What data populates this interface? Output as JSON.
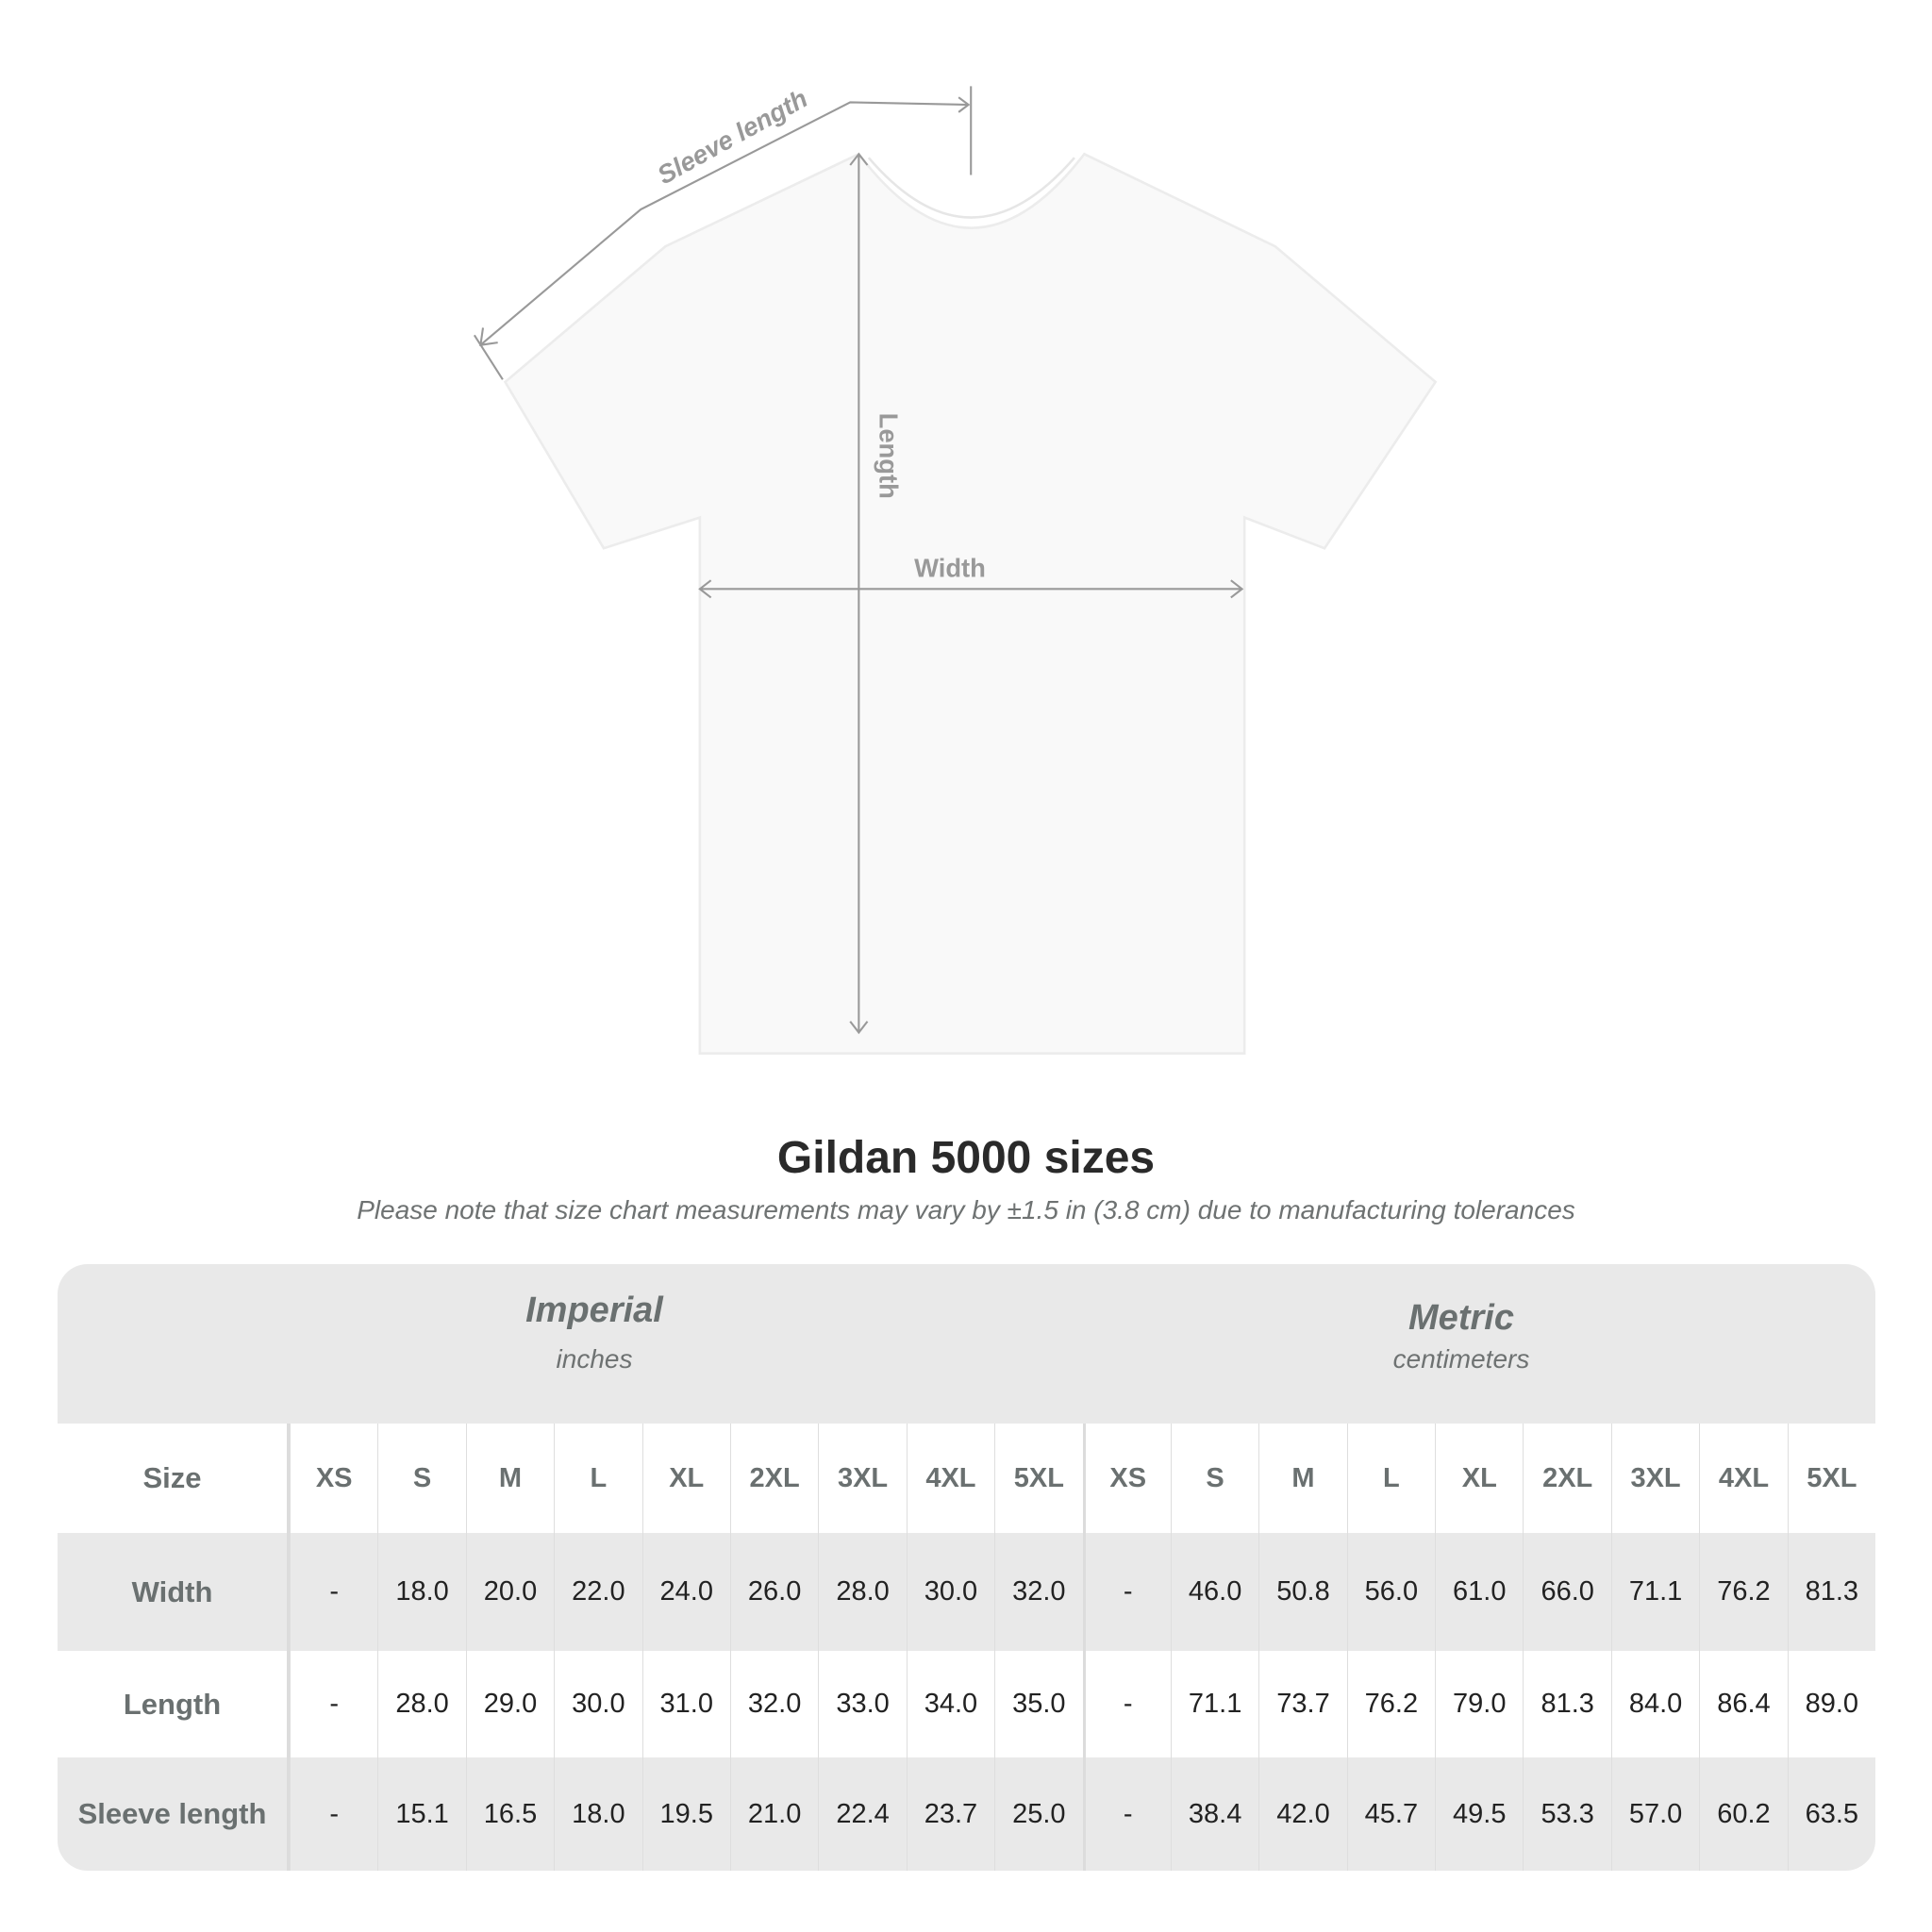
{
  "diagram": {
    "sleeve_label": "Sleeve length",
    "length_label": "Length",
    "width_label": "Width"
  },
  "title": "Gildan 5000 sizes",
  "note": "Please note that size chart measurements may vary by ±1.5 in (3.8 cm) due to manufacturing tolerances",
  "table": {
    "imperial": {
      "name": "Imperial",
      "unit": "inches"
    },
    "metric": {
      "name": "Metric",
      "unit": "centimeters"
    },
    "size_label": "Size",
    "sizes": [
      "XS",
      "S",
      "M",
      "L",
      "XL",
      "2XL",
      "3XL",
      "4XL",
      "5XL"
    ],
    "rows": [
      {
        "label": "Width",
        "imperial": [
          "-",
          "18.0",
          "20.0",
          "22.0",
          "24.0",
          "26.0",
          "28.0",
          "30.0",
          "32.0"
        ],
        "metric": [
          "-",
          "46.0",
          "50.8",
          "56.0",
          "61.0",
          "66.0",
          "71.1",
          "76.2",
          "81.3"
        ]
      },
      {
        "label": "Length",
        "imperial": [
          "-",
          "28.0",
          "29.0",
          "30.0",
          "31.0",
          "32.0",
          "33.0",
          "34.0",
          "35.0"
        ],
        "metric": [
          "-",
          "71.1",
          "73.7",
          "76.2",
          "79.0",
          "81.3",
          "84.0",
          "86.4",
          "89.0"
        ]
      },
      {
        "label": "Sleeve length",
        "imperial": [
          "-",
          "15.1",
          "16.5",
          "18.0",
          "19.5",
          "21.0",
          "22.4",
          "23.7",
          "25.0"
        ],
        "metric": [
          "-",
          "38.4",
          "42.0",
          "45.7",
          "49.5",
          "53.3",
          "57.0",
          "60.2",
          "63.5"
        ]
      }
    ]
  },
  "colors": {
    "header_bg": "#e9e9e9",
    "label_text": "#6a7070",
    "annotation": "#999999"
  }
}
